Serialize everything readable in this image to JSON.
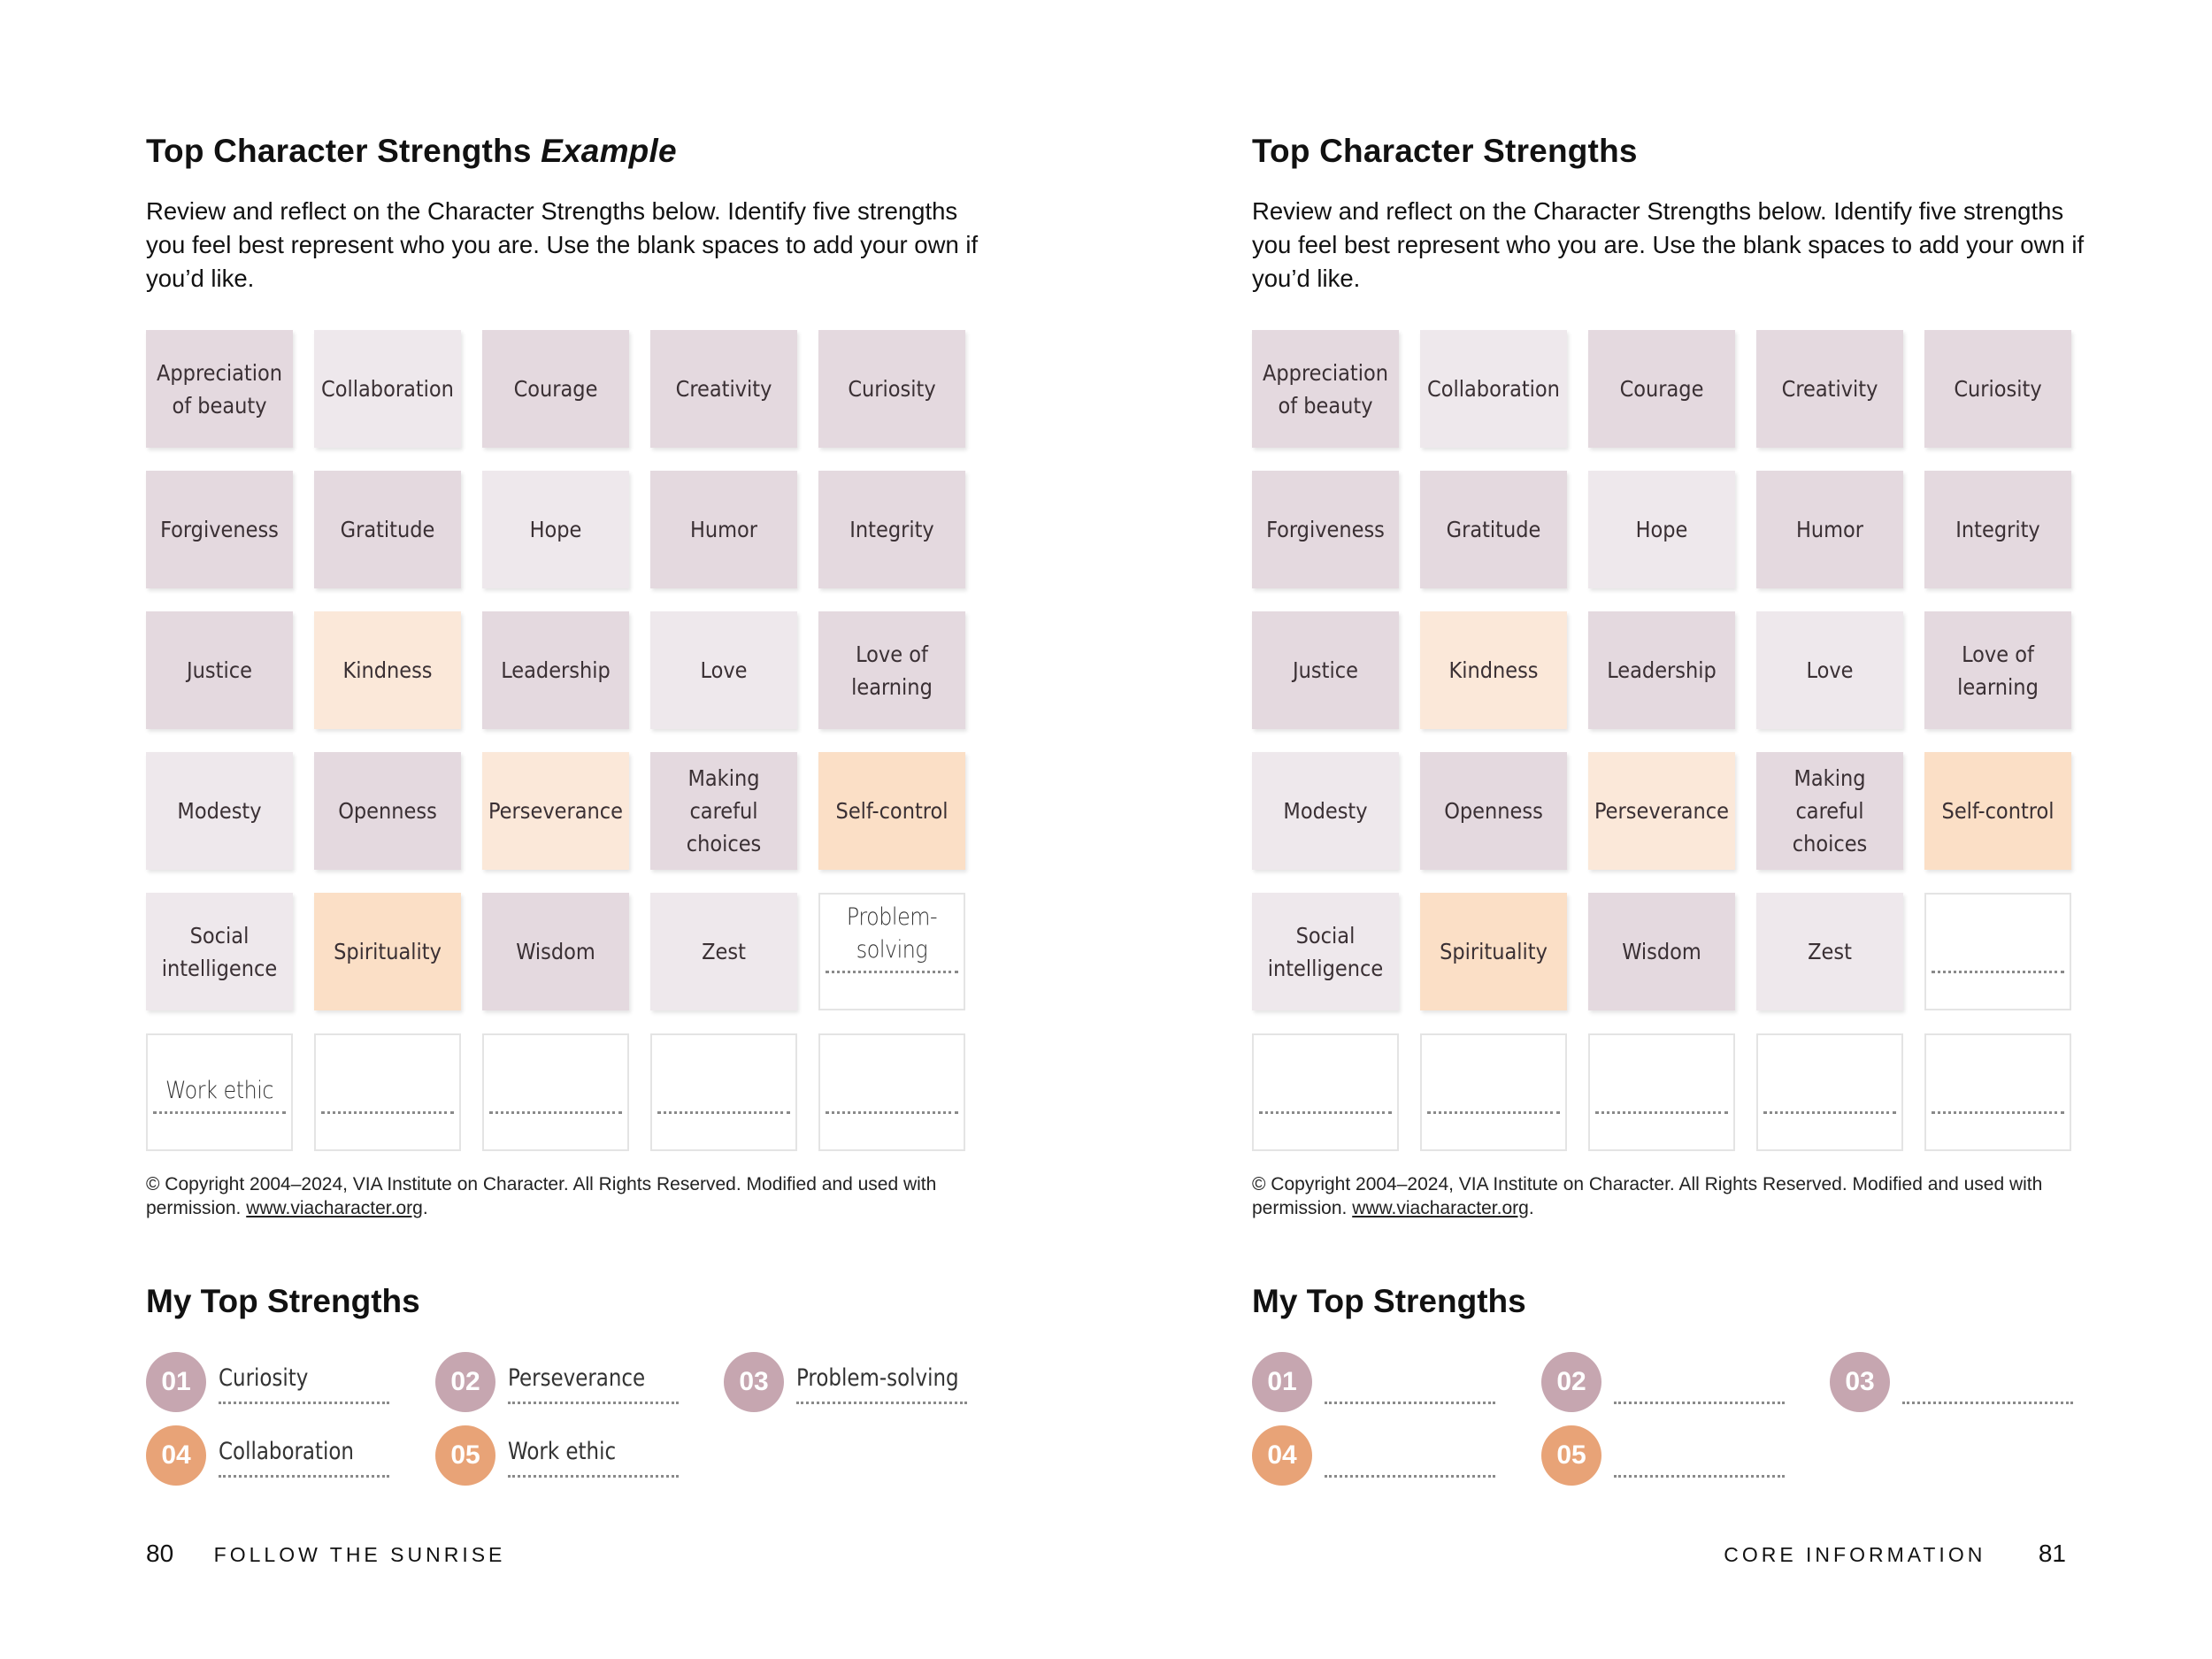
{
  "left_page": {
    "title": "Top Character Strengths",
    "title_emphasis": "Example",
    "intro": "Review and reflect on the Character Strengths below. Identify five strengths you feel best represent who you are. Use the blank spaces to add your own if you’d like.",
    "tiles": [
      {
        "label": "Appreciation\nof beauty",
        "shade": "mauve"
      },
      {
        "label": "Collaboration",
        "shade": "light"
      },
      {
        "label": "Courage",
        "shade": "mauve"
      },
      {
        "label": "Creativity",
        "shade": "mauve"
      },
      {
        "label": "Curiosity",
        "shade": "mauve"
      },
      {
        "label": "Forgiveness",
        "shade": "mauve"
      },
      {
        "label": "Gratitude",
        "shade": "mauve"
      },
      {
        "label": "Hope",
        "shade": "light"
      },
      {
        "label": "Humor",
        "shade": "mauve"
      },
      {
        "label": "Integrity",
        "shade": "mauve"
      },
      {
        "label": "Justice",
        "shade": "mauve"
      },
      {
        "label": "Kindness",
        "shade": "peach-light"
      },
      {
        "label": "Leadership",
        "shade": "mauve"
      },
      {
        "label": "Love",
        "shade": "light"
      },
      {
        "label": "Love of\nlearning",
        "shade": "mauve"
      },
      {
        "label": "Modesty",
        "shade": "light"
      },
      {
        "label": "Openness",
        "shade": "mauve"
      },
      {
        "label": "Perseverance",
        "shade": "peach-light"
      },
      {
        "label": "Making\ncareful choices",
        "shade": "mauve"
      },
      {
        "label": "Self-control",
        "shade": "peach"
      },
      {
        "label": "Social\nintelligence",
        "shade": "light"
      },
      {
        "label": "Spirituality",
        "shade": "peach"
      },
      {
        "label": "Wisdom",
        "shade": "mauve"
      },
      {
        "label": "Zest",
        "shade": "light"
      }
    ],
    "blank_tiles": [
      "Problem-solving",
      "Work ethic",
      "",
      "",
      "",
      ""
    ],
    "copyright": "© Copyright 2004–2024, VIA Institute on Character. All Rights Reserved. Modified and used with permission.",
    "copyright_link": "www.viacharacter.org",
    "subheading": "My Top Strengths",
    "picks": [
      {
        "number": "01",
        "value": "Curiosity"
      },
      {
        "number": "02",
        "value": "Perseverance"
      },
      {
        "number": "03",
        "value": "Problem-solving"
      },
      {
        "number": "04",
        "value": "Collaboration"
      },
      {
        "number": "05",
        "value": "Work ethic"
      }
    ],
    "page_number": "80",
    "running_title": "FOLLOW THE SUNRISE"
  },
  "right_page": {
    "title": "Top Character Strengths",
    "intro": "Review and reflect on the Character Strengths below. Identify five strengths you feel best represent who you are. Use the blank spaces to add your own if you’d like.",
    "tiles": [
      {
        "label": "Appreciation\nof beauty",
        "shade": "mauve"
      },
      {
        "label": "Collaboration",
        "shade": "light"
      },
      {
        "label": "Courage",
        "shade": "mauve"
      },
      {
        "label": "Creativity",
        "shade": "mauve"
      },
      {
        "label": "Curiosity",
        "shade": "mauve"
      },
      {
        "label": "Forgiveness",
        "shade": "mauve"
      },
      {
        "label": "Gratitude",
        "shade": "mauve"
      },
      {
        "label": "Hope",
        "shade": "light"
      },
      {
        "label": "Humor",
        "shade": "mauve"
      },
      {
        "label": "Integrity",
        "shade": "mauve"
      },
      {
        "label": "Justice",
        "shade": "mauve"
      },
      {
        "label": "Kindness",
        "shade": "peach-light"
      },
      {
        "label": "Leadership",
        "shade": "mauve"
      },
      {
        "label": "Love",
        "shade": "light"
      },
      {
        "label": "Love of\nlearning",
        "shade": "mauve"
      },
      {
        "label": "Modesty",
        "shade": "light"
      },
      {
        "label": "Openness",
        "shade": "mauve"
      },
      {
        "label": "Perseverance",
        "shade": "peach-light"
      },
      {
        "label": "Making\ncareful choices",
        "shade": "mauve"
      },
      {
        "label": "Self-control",
        "shade": "peach"
      },
      {
        "label": "Social\nintelligence",
        "shade": "light"
      },
      {
        "label": "Spirituality",
        "shade": "peach"
      },
      {
        "label": "Wisdom",
        "shade": "mauve"
      },
      {
        "label": "Zest",
        "shade": "light"
      }
    ],
    "blank_tiles": [
      "",
      "",
      "",
      "",
      "",
      ""
    ],
    "copyright": "© Copyright 2004–2024, VIA Institute on Character. All Rights Reserved. Modified and used with permission.",
    "copyright_link": "www.viacharacter.org",
    "subheading": "My Top Strengths",
    "picks": [
      {
        "number": "01",
        "value": ""
      },
      {
        "number": "02",
        "value": ""
      },
      {
        "number": "03",
        "value": ""
      },
      {
        "number": "04",
        "value": ""
      },
      {
        "number": "05",
        "value": ""
      }
    ],
    "page_number": "81",
    "running_title": "CORE INFORMATION"
  },
  "colors": {
    "mauve": "#e4d9df",
    "light": "#eee8ec",
    "peach-light": "#fbe8d9",
    "peach": "#fbdfc6",
    "badge_mauve": "#c6a6b0",
    "badge_peach": "#e8a377"
  }
}
